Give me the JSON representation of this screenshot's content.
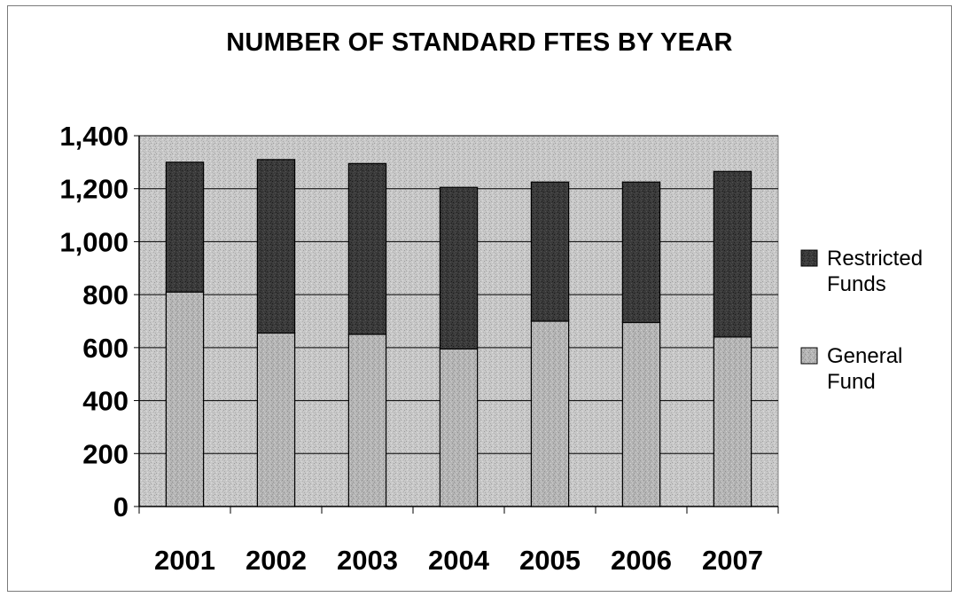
{
  "chart_data": {
    "type": "bar",
    "stacked": true,
    "title": "NUMBER OF STANDARD FTES BY YEAR",
    "xlabel": "",
    "ylabel": "",
    "categories": [
      "2001",
      "2002",
      "2003",
      "2004",
      "2005",
      "2006",
      "2007"
    ],
    "series": [
      {
        "name": "General Fund",
        "values": [
          810,
          655,
          650,
          595,
          700,
          695,
          640
        ],
        "color": "#b4b4b4"
      },
      {
        "name": "Restricted Funds",
        "values": [
          490,
          655,
          645,
          610,
          525,
          530,
          625
        ],
        "color": "#3a3a3a"
      }
    ],
    "ylim": [
      0,
      1400
    ],
    "yticks": [
      0,
      200,
      400,
      600,
      800,
      1000,
      1200,
      1400
    ],
    "ytick_labels": [
      "0",
      "200",
      "400",
      "600",
      "800",
      "1,000",
      "1,200",
      "1,400"
    ],
    "grid": true,
    "legend": {
      "placement": "right",
      "order": [
        "Restricted Funds",
        "General Fund"
      ]
    },
    "plot_background": "#c8c8c8"
  }
}
